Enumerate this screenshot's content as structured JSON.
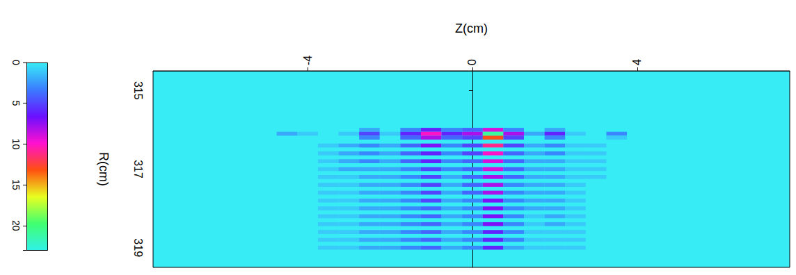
{
  "chart_data": {
    "type": "heatmap",
    "x_label": "Z(cm)",
    "y_label": "R(cm)",
    "xlim": [
      -7.75,
      7.7
    ],
    "xticks": [
      -4,
      0,
      4
    ],
    "ylim": [
      314.5,
      319.5
    ],
    "yticks": [
      315,
      317,
      319
    ],
    "cell_width": 0.5,
    "cell_height": 0.1,
    "cells": [
      [
        -2.5,
        316.0,
        2
      ],
      [
        -1.5,
        316.0,
        3
      ],
      [
        -1.0,
        316.0,
        6
      ],
      [
        -0.5,
        316.0,
        3
      ],
      [
        0,
        316.0,
        4
      ],
      [
        0.5,
        316.0,
        9
      ],
      [
        1.0,
        316.0,
        3
      ],
      [
        2.0,
        316.0,
        2
      ],
      [
        -4.5,
        316.1,
        2
      ],
      [
        -4.0,
        316.1,
        1
      ],
      [
        -3.0,
        316.1,
        1
      ],
      [
        -2.5,
        316.1,
        5
      ],
      [
        -2.0,
        316.1,
        1
      ],
      [
        -1.5,
        316.1,
        6
      ],
      [
        -1.0,
        316.1,
        10
      ],
      [
        -0.5,
        316.1,
        6
      ],
      [
        0,
        316.1,
        8
      ],
      [
        0.5,
        316.1,
        21
      ],
      [
        1.0,
        316.1,
        8
      ],
      [
        1.5,
        316.1,
        2
      ],
      [
        2.0,
        316.1,
        6
      ],
      [
        2.5,
        316.1,
        1
      ],
      [
        3.5,
        316.1,
        3
      ],
      [
        -2.5,
        316.2,
        3
      ],
      [
        -1.5,
        316.2,
        4
      ],
      [
        -1.0,
        316.2,
        8
      ],
      [
        -0.5,
        316.2,
        4
      ],
      [
        0,
        316.2,
        5
      ],
      [
        0.5,
        316.2,
        13
      ],
      [
        1.0,
        316.2,
        5
      ],
      [
        2.0,
        316.2,
        3
      ],
      [
        3.5,
        316.2,
        1
      ],
      [
        -3.5,
        316.4,
        1
      ],
      [
        -3.0,
        316.4,
        2
      ],
      [
        -2.5,
        316.4,
        3
      ],
      [
        -2.0,
        316.4,
        2
      ],
      [
        -1.5,
        316.4,
        4
      ],
      [
        -1.0,
        316.4,
        7
      ],
      [
        -0.5,
        316.4,
        3
      ],
      [
        0,
        316.4,
        5
      ],
      [
        0.5,
        316.4,
        11
      ],
      [
        1.0,
        316.4,
        5
      ],
      [
        1.5,
        316.4,
        2
      ],
      [
        2.0,
        316.4,
        3
      ],
      [
        2.5,
        316.4,
        1
      ],
      [
        3.0,
        316.4,
        1
      ],
      [
        -3.5,
        316.6,
        1
      ],
      [
        -3.0,
        316.6,
        2
      ],
      [
        -2.5,
        316.6,
        3
      ],
      [
        -2.0,
        316.6,
        2
      ],
      [
        -1.5,
        316.6,
        4
      ],
      [
        -1.0,
        316.6,
        6
      ],
      [
        -0.5,
        316.6,
        3
      ],
      [
        0,
        316.6,
        5
      ],
      [
        0.5,
        316.6,
        10
      ],
      [
        1.0,
        316.6,
        4
      ],
      [
        1.5,
        316.6,
        2
      ],
      [
        2.0,
        316.6,
        3
      ],
      [
        2.5,
        316.6,
        1
      ],
      [
        3.0,
        316.6,
        1
      ],
      [
        -3.5,
        316.8,
        1
      ],
      [
        -3.0,
        316.8,
        2
      ],
      [
        -2.5,
        316.8,
        3
      ],
      [
        -2.0,
        316.8,
        2
      ],
      [
        -1.5,
        316.8,
        4
      ],
      [
        -1.0,
        316.8,
        6
      ],
      [
        -0.5,
        316.8,
        3
      ],
      [
        0,
        316.8,
        4
      ],
      [
        0.5,
        316.8,
        9
      ],
      [
        1.0,
        316.8,
        4
      ],
      [
        1.5,
        316.8,
        2
      ],
      [
        2.0,
        316.8,
        2
      ],
      [
        2.5,
        316.8,
        1
      ],
      [
        3.0,
        316.8,
        1
      ],
      [
        -3.5,
        317.0,
        1
      ],
      [
        -3.0,
        317.0,
        2
      ],
      [
        -2.5,
        317.0,
        2
      ],
      [
        -2.0,
        317.0,
        2
      ],
      [
        -1.5,
        317.0,
        3
      ],
      [
        -1.0,
        317.0,
        5
      ],
      [
        -0.5,
        317.0,
        3
      ],
      [
        0,
        317.0,
        4
      ],
      [
        0.5,
        317.0,
        9
      ],
      [
        1.0,
        317.0,
        4
      ],
      [
        1.5,
        317.0,
        2
      ],
      [
        2.0,
        317.0,
        2
      ],
      [
        2.5,
        317.0,
        1
      ],
      [
        3.0,
        317.0,
        1
      ],
      [
        -3.5,
        317.2,
        1
      ],
      [
        -3.0,
        317.2,
        1
      ],
      [
        -2.5,
        317.2,
        2
      ],
      [
        -2.0,
        317.2,
        2
      ],
      [
        -1.5,
        317.2,
        3
      ],
      [
        -1.0,
        317.2,
        5
      ],
      [
        -0.5,
        317.2,
        2
      ],
      [
        0,
        317.2,
        4
      ],
      [
        0.5,
        317.2,
        8
      ],
      [
        1.0,
        317.2,
        4
      ],
      [
        1.5,
        317.2,
        2
      ],
      [
        2.0,
        317.2,
        2
      ],
      [
        2.5,
        317.2,
        1
      ],
      [
        3.0,
        317.2,
        1
      ],
      [
        -3.5,
        317.4,
        1
      ],
      [
        -3.0,
        317.4,
        1
      ],
      [
        -2.5,
        317.4,
        2
      ],
      [
        -2.0,
        317.4,
        2
      ],
      [
        -1.5,
        317.4,
        3
      ],
      [
        -1.0,
        317.4,
        5
      ],
      [
        -0.5,
        317.4,
        2
      ],
      [
        0,
        317.4,
        4
      ],
      [
        0.5,
        317.4,
        8
      ],
      [
        1.0,
        317.4,
        3
      ],
      [
        1.5,
        317.4,
        2
      ],
      [
        2.0,
        317.4,
        2
      ],
      [
        2.5,
        317.4,
        1
      ],
      [
        -3.5,
        317.6,
        1
      ],
      [
        -3.0,
        317.6,
        1
      ],
      [
        -2.5,
        317.6,
        2
      ],
      [
        -2.0,
        317.6,
        2
      ],
      [
        -1.5,
        317.6,
        3
      ],
      [
        -1.0,
        317.6,
        5
      ],
      [
        -0.5,
        317.6,
        2
      ],
      [
        0,
        317.6,
        4
      ],
      [
        0.5,
        317.6,
        8
      ],
      [
        1.0,
        317.6,
        3
      ],
      [
        1.5,
        317.6,
        2
      ],
      [
        2.0,
        317.6,
        2
      ],
      [
        2.5,
        317.6,
        1
      ],
      [
        -3.5,
        317.8,
        1
      ],
      [
        -3.0,
        317.8,
        1
      ],
      [
        -2.5,
        317.8,
        2
      ],
      [
        -2.0,
        317.8,
        2
      ],
      [
        -1.5,
        317.8,
        3
      ],
      [
        -1.0,
        317.8,
        5
      ],
      [
        -0.5,
        317.8,
        2
      ],
      [
        0,
        317.8,
        3
      ],
      [
        0.5,
        317.8,
        7
      ],
      [
        1.0,
        317.8,
        3
      ],
      [
        1.5,
        317.8,
        2
      ],
      [
        2.0,
        317.8,
        2
      ],
      [
        2.5,
        317.8,
        1
      ],
      [
        -3.5,
        318.0,
        1
      ],
      [
        -3.0,
        318.0,
        1
      ],
      [
        -2.5,
        318.0,
        2
      ],
      [
        -2.0,
        318.0,
        2
      ],
      [
        -1.5,
        318.0,
        3
      ],
      [
        -1.0,
        318.0,
        4
      ],
      [
        -0.5,
        318.0,
        2
      ],
      [
        0,
        318.0,
        3
      ],
      [
        0.5,
        318.0,
        7
      ],
      [
        1.0,
        318.0,
        3
      ],
      [
        1.5,
        318.0,
        2
      ],
      [
        2.0,
        318.0,
        2
      ],
      [
        2.5,
        318.0,
        1
      ],
      [
        -3.5,
        318.2,
        1
      ],
      [
        -3.0,
        318.2,
        1
      ],
      [
        -2.5,
        318.2,
        2
      ],
      [
        -2.0,
        318.2,
        2
      ],
      [
        -1.5,
        318.2,
        3
      ],
      [
        -1.0,
        318.2,
        4
      ],
      [
        -0.5,
        318.2,
        2
      ],
      [
        0,
        318.2,
        3
      ],
      [
        0.5,
        318.2,
        7
      ],
      [
        1.0,
        318.2,
        3
      ],
      [
        1.5,
        318.2,
        1
      ],
      [
        2.0,
        318.2,
        2
      ],
      [
        2.5,
        318.2,
        1
      ],
      [
        -3.5,
        318.4,
        1
      ],
      [
        -3.0,
        318.4,
        1
      ],
      [
        -2.5,
        318.4,
        2
      ],
      [
        -2.0,
        318.4,
        2
      ],
      [
        -1.5,
        318.4,
        3
      ],
      [
        -1.0,
        318.4,
        4
      ],
      [
        -0.5,
        318.4,
        2
      ],
      [
        0,
        318.4,
        3
      ],
      [
        0.5,
        318.4,
        7
      ],
      [
        1.0,
        318.4,
        3
      ],
      [
        1.5,
        318.4,
        1
      ],
      [
        2.0,
        318.4,
        2
      ],
      [
        2.5,
        318.4,
        1
      ],
      [
        -3.5,
        318.6,
        1
      ],
      [
        -3.0,
        318.6,
        1
      ],
      [
        -2.5,
        318.6,
        2
      ],
      [
        -2.0,
        318.6,
        2
      ],
      [
        -1.5,
        318.6,
        3
      ],
      [
        -1.0,
        318.6,
        4
      ],
      [
        -0.5,
        318.6,
        2
      ],
      [
        0,
        318.6,
        3
      ],
      [
        0.5,
        318.6,
        6
      ],
      [
        1.0,
        318.6,
        3
      ],
      [
        1.5,
        318.6,
        1
      ],
      [
        2.0,
        318.6,
        1
      ],
      [
        2.5,
        318.6,
        1
      ],
      [
        -3.5,
        318.8,
        1
      ],
      [
        -3.0,
        318.8,
        1
      ],
      [
        -2.5,
        318.8,
        2
      ],
      [
        -2.0,
        318.8,
        2
      ],
      [
        -1.5,
        318.8,
        3
      ],
      [
        -1.0,
        318.8,
        4
      ],
      [
        -0.5,
        318.8,
        2
      ],
      [
        0,
        318.8,
        3
      ],
      [
        0.5,
        318.8,
        6
      ],
      [
        1.0,
        318.8,
        3
      ],
      [
        1.5,
        318.8,
        1
      ],
      [
        2.0,
        318.8,
        1
      ],
      [
        2.5,
        318.8,
        1
      ],
      [
        -3.5,
        319.0,
        1
      ],
      [
        -3.0,
        319.0,
        1
      ],
      [
        -2.5,
        319.0,
        2
      ],
      [
        -2.0,
        319.0,
        2
      ],
      [
        -1.5,
        319.0,
        3
      ],
      [
        -1.0,
        319.0,
        4
      ],
      [
        -0.5,
        319.0,
        2
      ],
      [
        0,
        319.0,
        3
      ],
      [
        0.5,
        319.0,
        6
      ],
      [
        1.0,
        319.0,
        2
      ],
      [
        1.5,
        319.0,
        1
      ],
      [
        2.0,
        319.0,
        1
      ],
      [
        2.5,
        319.0,
        1
      ]
    ],
    "colorbar": {
      "range": [
        0,
        23
      ],
      "ticks": [
        0,
        5,
        10,
        15,
        20
      ],
      "colors": [
        "#38ecf6",
        "#3a7cff",
        "#6a10ff",
        "#ff10d0",
        "#ff5010",
        "#e8ff20",
        "#40ff70",
        "#30f0e8"
      ]
    }
  }
}
